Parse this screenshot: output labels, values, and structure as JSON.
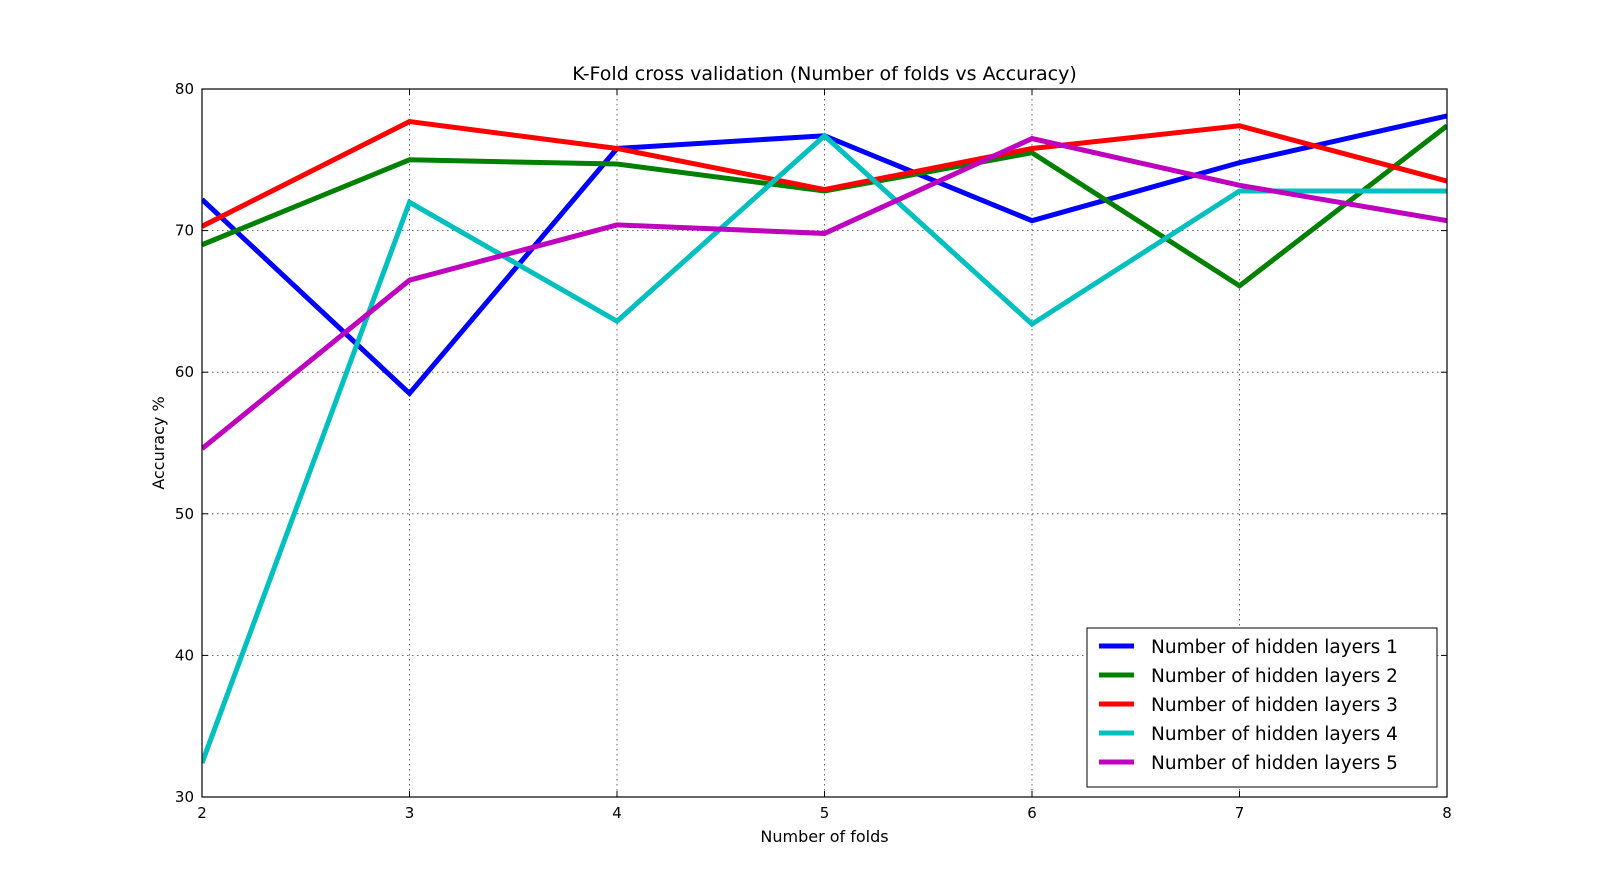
{
  "chart_data": {
    "type": "line",
    "title": "K-Fold cross validation (Number of folds vs Accuracy)",
    "xlabel": "Number of folds",
    "ylabel": "Accuracy %",
    "x": [
      2,
      3,
      4,
      5,
      6,
      7,
      8
    ],
    "xlim": [
      2,
      8
    ],
    "ylim": [
      30,
      80
    ],
    "xticks": [
      2,
      3,
      4,
      5,
      6,
      7,
      8
    ],
    "yticks": [
      30,
      40,
      50,
      60,
      70,
      80
    ],
    "grid": true,
    "legend_position": "lower-right",
    "series": [
      {
        "name": "Number of hidden layers 1",
        "color": "#0000ff",
        "values": [
          72.2,
          58.5,
          75.8,
          76.7,
          70.7,
          74.8,
          78.1
        ]
      },
      {
        "name": "Number of hidden layers 2",
        "color": "#008000",
        "values": [
          69.0,
          75.0,
          74.7,
          72.8,
          75.5,
          66.1,
          77.4
        ]
      },
      {
        "name": "Number of hidden layers 3",
        "color": "#ff0000",
        "values": [
          70.3,
          77.7,
          75.8,
          72.9,
          75.8,
          77.4,
          73.5
        ]
      },
      {
        "name": "Number of hidden layers 4",
        "color": "#00bfbf",
        "values": [
          32.4,
          72.0,
          63.6,
          76.7,
          63.4,
          72.8,
          72.8
        ]
      },
      {
        "name": "Number of hidden layers 5",
        "color": "#bf00bf",
        "values": [
          54.6,
          66.5,
          70.4,
          69.8,
          76.5,
          73.2,
          70.7
        ]
      }
    ]
  }
}
